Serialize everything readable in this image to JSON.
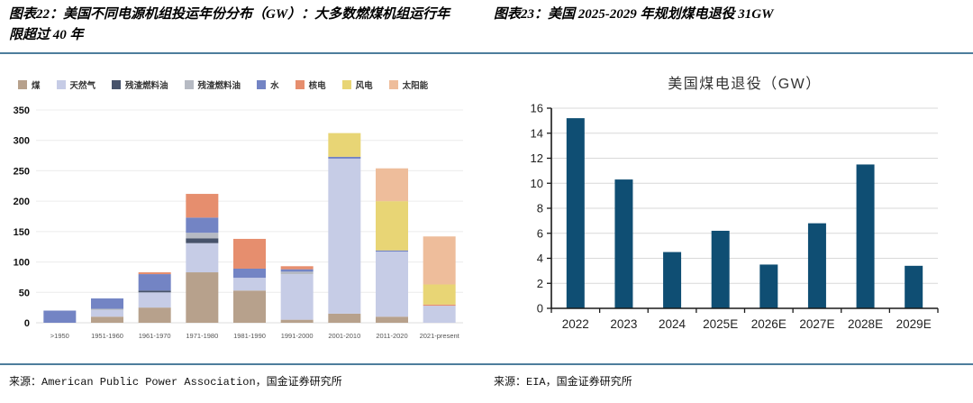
{
  "figures": [
    {
      "title": "图表22：美国不同电源机组投运年份分布（GW）：大多数燃煤机组运行年限超过 40 年",
      "source": "来源：American Public Power Association，国金证券研究所"
    },
    {
      "title": "图表23：美国 2025-2029 年规划煤电退役 31GW",
      "source": "来源：EIA，国金证券研究所"
    }
  ],
  "colors": {
    "divider": "#4d7d9c",
    "grid_left": "#ececec",
    "grid_right": "#d9d9d9",
    "axis": "#1a1a1a"
  },
  "chart_data": [
    {
      "type": "bar",
      "stacked": true,
      "title": "",
      "categories": [
        ">1950",
        "1951-1960",
        "1961-1970",
        "1971-1980",
        "1981-1990",
        "1991-2000",
        "2001-2010",
        "2011-2020",
        "2021-present"
      ],
      "series": [
        {
          "name": "煤",
          "color": "#b7a18c",
          "values": [
            0,
            10,
            25,
            83,
            53,
            5,
            15,
            10,
            0
          ]
        },
        {
          "name": "天然气",
          "color": "#c6cce6",
          "values": [
            0,
            11,
            25,
            48,
            21,
            75,
            255,
            107,
            28
          ]
        },
        {
          "name": "残渣燃料油",
          "color": "#47536b",
          "values": [
            0,
            0,
            3,
            8,
            0,
            0,
            0,
            0,
            0
          ]
        },
        {
          "name": "残渣燃料油",
          "color": "#b6bac3",
          "values": [
            0,
            2,
            0,
            9,
            0,
            4,
            0,
            0,
            0
          ]
        },
        {
          "name": "水",
          "color": "#7384c4",
          "values": [
            20,
            17,
            27,
            25,
            15,
            4,
            3,
            2,
            0
          ]
        },
        {
          "name": "核电",
          "color": "#e68e6e",
          "values": [
            0,
            0,
            3,
            39,
            49,
            5,
            0,
            0,
            2
          ]
        },
        {
          "name": "风电",
          "color": "#e8d575",
          "values": [
            0,
            0,
            0,
            0,
            0,
            0,
            39,
            81,
            33
          ]
        },
        {
          "name": "太阳能",
          "color": "#eebd9b",
          "values": [
            0,
            0,
            0,
            0,
            0,
            0,
            0,
            54,
            79
          ]
        }
      ],
      "ylim": [
        0,
        350
      ],
      "ytick_step": 50,
      "legend_position": "top",
      "grid": true,
      "xlabel": "",
      "ylabel": ""
    },
    {
      "type": "bar",
      "stacked": false,
      "title": "美国煤电退役（GW）",
      "categories": [
        "2022",
        "2023",
        "2024",
        "2025E",
        "2026E",
        "2027E",
        "2028E",
        "2029E"
      ],
      "values": [
        15.2,
        10.3,
        4.5,
        6.2,
        3.5,
        6.8,
        11.5,
        3.4
      ],
      "bar_color": "#0f4e73",
      "ylim": [
        0,
        16
      ],
      "ytick_step": 2,
      "grid": true,
      "xlabel": "",
      "ylabel": ""
    }
  ]
}
